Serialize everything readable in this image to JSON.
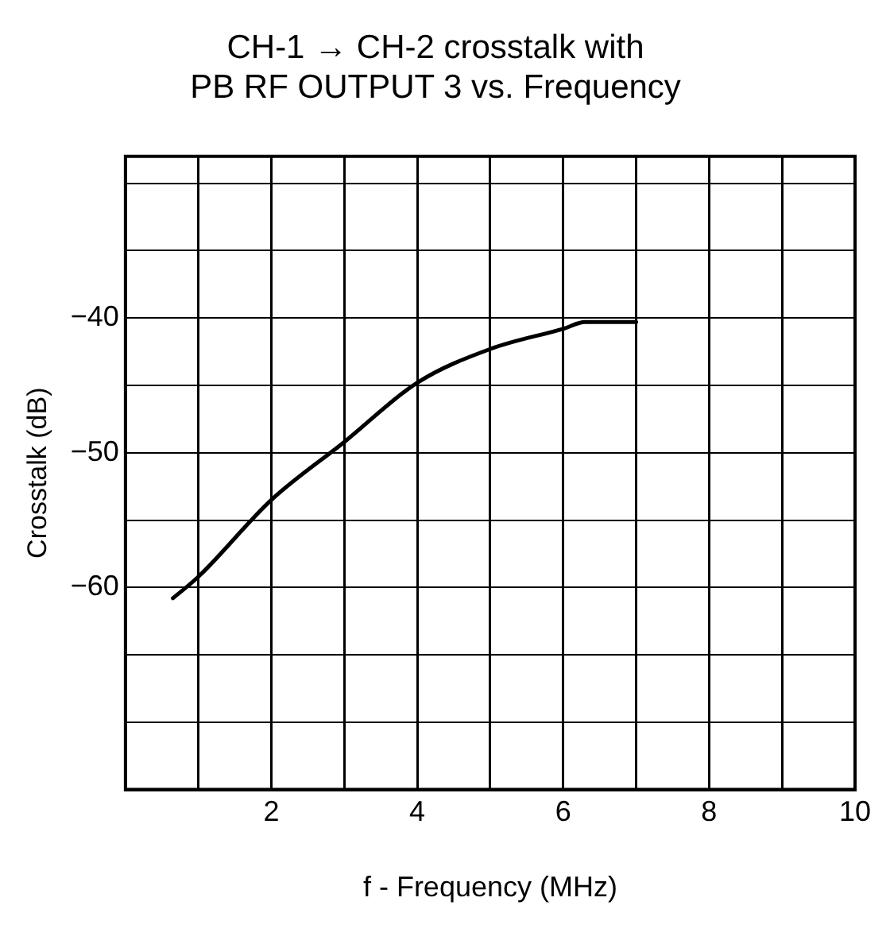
{
  "chart_data": {
    "type": "line",
    "title": "CH-1 → CH-2 crosstalk with\nPB RF OUTPUT 3 vs. Frequency",
    "xlabel": "f - Frequency (MHz)",
    "ylabel": "Crosstalk (dB)",
    "x": [
      0.65,
      1,
      2,
      3,
      4,
      5,
      6,
      6.3,
      7
    ],
    "series": [
      {
        "color": "#000000",
        "values": [
          -60.8,
          -59.2,
          -53.5,
          -49.2,
          -44.8,
          -42.3,
          -40.8,
          -40.3,
          -40.3
        ]
      }
    ],
    "xlim": [
      0,
      10
    ],
    "xticks": [
      {
        "value": 0,
        "label": null
      },
      {
        "value": 1,
        "label": null
      },
      2,
      {
        "value": 3,
        "label": null
      },
      4,
      {
        "value": 5,
        "label": null
      },
      6,
      {
        "value": 7,
        "label": null
      },
      8,
      {
        "value": 9,
        "label": null
      },
      10
    ],
    "ylim": [
      -75,
      -28
    ],
    "yticks": [
      {
        "value": -75,
        "label": null
      },
      {
        "value": -70,
        "label": null
      },
      {
        "value": -65,
        "label": null
      },
      -60,
      {
        "value": -55,
        "label": null
      },
      -50,
      {
        "value": -45,
        "label": null
      },
      -40,
      {
        "value": -35,
        "label": null
      },
      {
        "value": -30,
        "label": null
      }
    ],
    "grid": true,
    "legend": false,
    "marker": "none",
    "line_style": "solid"
  }
}
